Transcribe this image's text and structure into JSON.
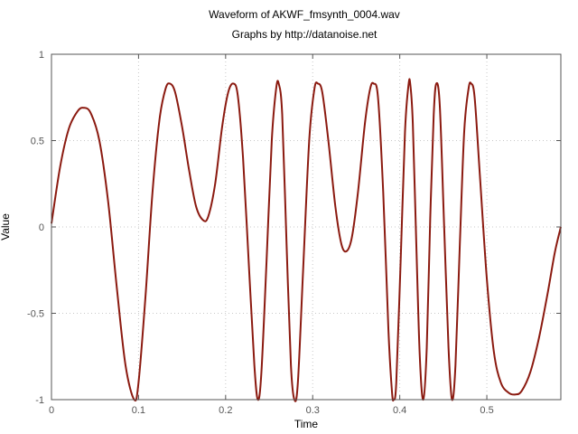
{
  "chart_data": {
    "type": "line",
    "title": "Waveform of AKWF_fmsynth_0004.wav",
    "subtitle": "Graphs by http://datanoise.net",
    "xlabel": "Time",
    "ylabel": "Value",
    "xlim": [
      0,
      0.585
    ],
    "ylim": [
      -1,
      1
    ],
    "x_ticks": [
      0,
      0.1,
      0.2,
      0.3,
      0.4,
      0.5
    ],
    "x_tick_labels": [
      "0",
      "0.1",
      "0.2",
      "0.3",
      "0.4",
      "0.5"
    ],
    "y_ticks": [
      1,
      0.5,
      0,
      -0.5,
      -1
    ],
    "y_tick_labels": [
      "1",
      "0.5",
      "0",
      "-0.5",
      "-1"
    ],
    "grid": true,
    "series": [
      {
        "color": "#8b1a10",
        "points": [
          [
            0.0,
            0.02
          ],
          [
            0.01,
            0.35
          ],
          [
            0.02,
            0.57
          ],
          [
            0.03,
            0.67
          ],
          [
            0.037,
            0.69
          ],
          [
            0.045,
            0.66
          ],
          [
            0.055,
            0.5
          ],
          [
            0.065,
            0.15
          ],
          [
            0.075,
            -0.35
          ],
          [
            0.085,
            -0.8
          ],
          [
            0.095,
            -1.0
          ],
          [
            0.1,
            -0.9
          ],
          [
            0.108,
            -0.4
          ],
          [
            0.116,
            0.2
          ],
          [
            0.124,
            0.62
          ],
          [
            0.131,
            0.8
          ],
          [
            0.136,
            0.83
          ],
          [
            0.142,
            0.78
          ],
          [
            0.15,
            0.58
          ],
          [
            0.158,
            0.33
          ],
          [
            0.166,
            0.12
          ],
          [
            0.174,
            0.04
          ],
          [
            0.18,
            0.06
          ],
          [
            0.188,
            0.25
          ],
          [
            0.196,
            0.58
          ],
          [
            0.203,
            0.78
          ],
          [
            0.209,
            0.83
          ],
          [
            0.214,
            0.76
          ],
          [
            0.22,
            0.4
          ],
          [
            0.227,
            -0.25
          ],
          [
            0.233,
            -0.8
          ],
          [
            0.237,
            -1.0
          ],
          [
            0.241,
            -0.85
          ],
          [
            0.247,
            -0.2
          ],
          [
            0.253,
            0.5
          ],
          [
            0.258,
            0.8
          ],
          [
            0.261,
            0.83
          ],
          [
            0.265,
            0.65
          ],
          [
            0.27,
            -0.1
          ],
          [
            0.275,
            -0.8
          ],
          [
            0.279,
            -1.0
          ],
          [
            0.283,
            -0.9
          ],
          [
            0.289,
            -0.25
          ],
          [
            0.296,
            0.5
          ],
          [
            0.302,
            0.8
          ],
          [
            0.306,
            0.83
          ],
          [
            0.311,
            0.78
          ],
          [
            0.318,
            0.5
          ],
          [
            0.326,
            0.12
          ],
          [
            0.333,
            -0.1
          ],
          [
            0.339,
            -0.14
          ],
          [
            0.345,
            -0.06
          ],
          [
            0.352,
            0.2
          ],
          [
            0.36,
            0.6
          ],
          [
            0.366,
            0.8
          ],
          [
            0.37,
            0.83
          ],
          [
            0.375,
            0.75
          ],
          [
            0.381,
            0.2
          ],
          [
            0.387,
            -0.6
          ],
          [
            0.391,
            -0.95
          ],
          [
            0.393,
            -1.0
          ],
          [
            0.396,
            -0.9
          ],
          [
            0.401,
            -0.2
          ],
          [
            0.406,
            0.55
          ],
          [
            0.41,
            0.82
          ],
          [
            0.412,
            0.83
          ],
          [
            0.415,
            0.6
          ],
          [
            0.419,
            -0.1
          ],
          [
            0.423,
            -0.75
          ],
          [
            0.427,
            -1.0
          ],
          [
            0.431,
            -0.7
          ],
          [
            0.435,
            0.05
          ],
          [
            0.439,
            0.65
          ],
          [
            0.442,
            0.83
          ],
          [
            0.446,
            0.7
          ],
          [
            0.451,
            0.0
          ],
          [
            0.456,
            -0.7
          ],
          [
            0.46,
            -1.0
          ],
          [
            0.464,
            -0.8
          ],
          [
            0.469,
            -0.1
          ],
          [
            0.474,
            0.55
          ],
          [
            0.479,
            0.8
          ],
          [
            0.482,
            0.83
          ],
          [
            0.486,
            0.75
          ],
          [
            0.492,
            0.3
          ],
          [
            0.5,
            -0.3
          ],
          [
            0.508,
            -0.72
          ],
          [
            0.516,
            -0.9
          ],
          [
            0.525,
            -0.96
          ],
          [
            0.533,
            -0.97
          ],
          [
            0.54,
            -0.95
          ],
          [
            0.55,
            -0.84
          ],
          [
            0.56,
            -0.64
          ],
          [
            0.57,
            -0.38
          ],
          [
            0.578,
            -0.15
          ],
          [
            0.585,
            0.0
          ]
        ]
      }
    ]
  }
}
